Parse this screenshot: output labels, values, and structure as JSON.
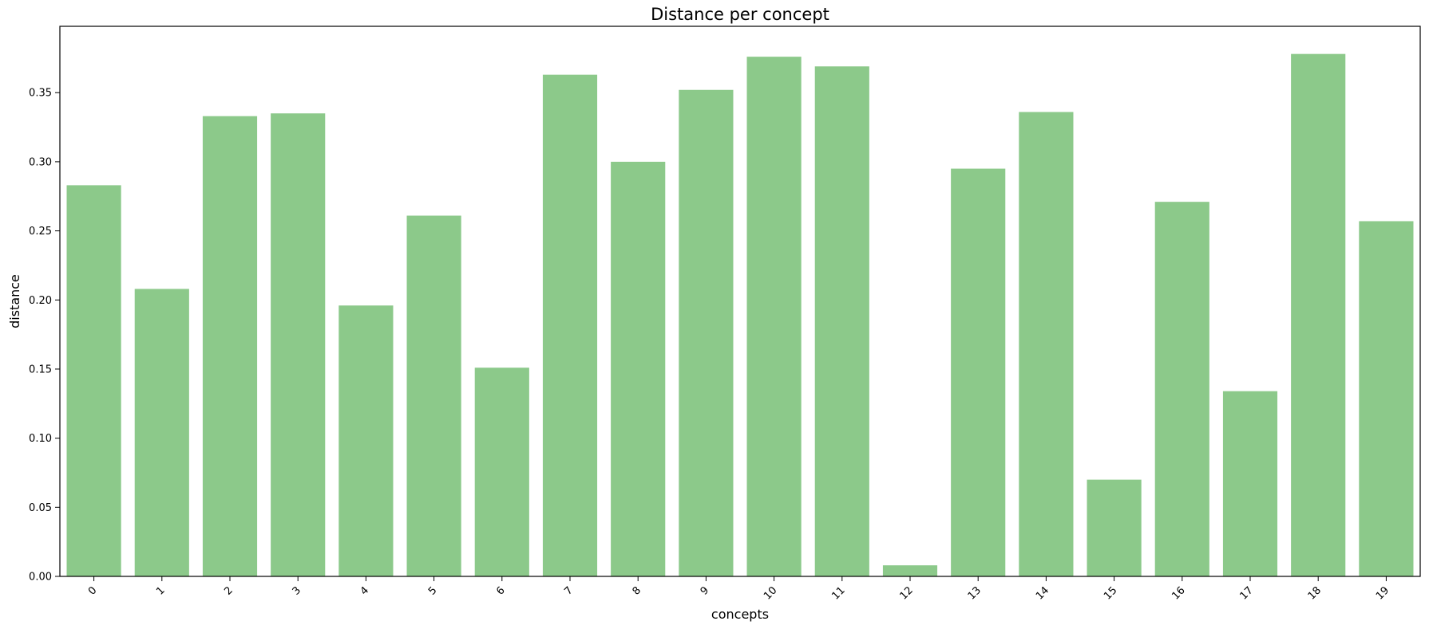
{
  "chart_data": {
    "type": "bar",
    "title": "Distance per concept",
    "xlabel": "concepts",
    "ylabel": "distance",
    "categories": [
      "0",
      "1",
      "2",
      "3",
      "4",
      "5",
      "6",
      "7",
      "8",
      "9",
      "10",
      "11",
      "12",
      "13",
      "14",
      "15",
      "16",
      "17",
      "18",
      "19"
    ],
    "values": [
      0.283,
      0.208,
      0.333,
      0.335,
      0.196,
      0.261,
      0.151,
      0.363,
      0.3,
      0.352,
      0.376,
      0.369,
      0.008,
      0.295,
      0.336,
      0.07,
      0.271,
      0.134,
      0.378,
      0.257
    ],
    "ylim": [
      0,
      0.398
    ],
    "yticks": [
      0.0,
      0.05,
      0.1,
      0.15,
      0.2,
      0.25,
      0.3,
      0.35
    ],
    "ytick_labels": [
      "0.00",
      "0.05",
      "0.10",
      "0.15",
      "0.20",
      "0.25",
      "0.30",
      "0.35"
    ],
    "bar_color": "#8cc98a",
    "grid": false
  }
}
